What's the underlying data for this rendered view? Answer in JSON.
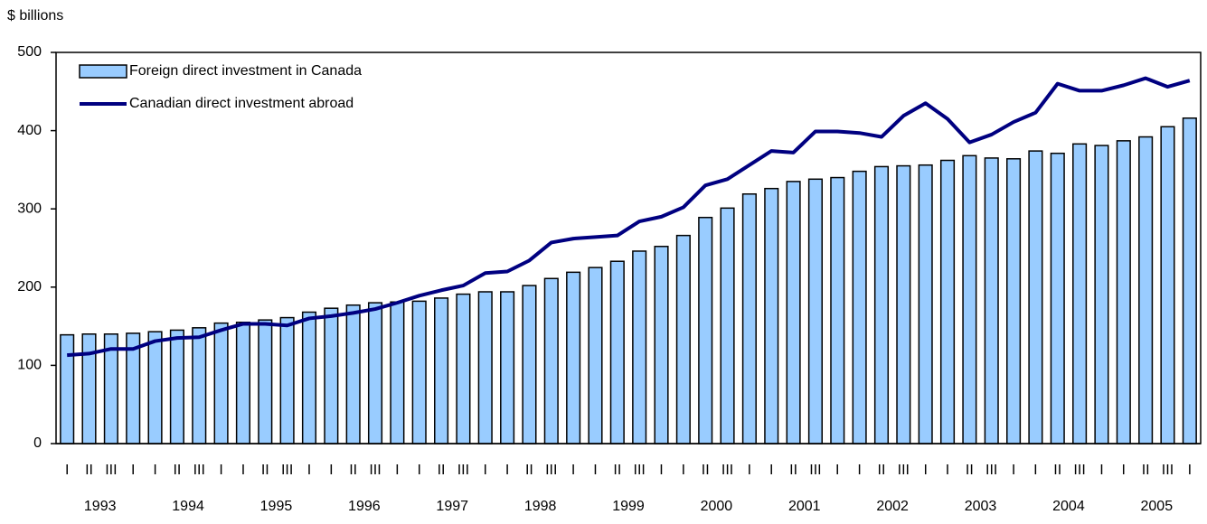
{
  "chart_data": {
    "type": "bar_line",
    "y_axis_label": "$ billions",
    "categories": [
      "I",
      "II",
      "III",
      "I",
      "I",
      "II",
      "III",
      "I",
      "I",
      "II",
      "III",
      "I",
      "I",
      "II",
      "III",
      "I",
      "I",
      "II",
      "III",
      "I",
      "I",
      "II",
      "III",
      "I",
      "I",
      "II",
      "III",
      "I",
      "I",
      "II",
      "III",
      "I",
      "I",
      "II",
      "III",
      "I",
      "I",
      "II",
      "III",
      "I",
      "I",
      "II",
      "III",
      "I",
      "I",
      "II",
      "III",
      "I",
      "I",
      "II",
      "III",
      "I"
    ],
    "years": [
      "1993",
      "1994",
      "1995",
      "1996",
      "1997",
      "1998",
      "1999",
      "2000",
      "2001",
      "2002",
      "2003",
      "2004",
      "2005"
    ],
    "series": [
      {
        "name": "Foreign direct investment in Canada",
        "color": "#99ccff",
        "kind": "bar",
        "values": [
          139,
          140,
          140,
          141,
          143,
          145,
          148,
          154,
          155,
          158,
          161,
          168,
          173,
          177,
          180,
          181,
          182,
          186,
          191,
          194,
          194,
          202,
          211,
          219,
          225,
          233,
          246,
          252,
          266,
          289,
          301,
          319,
          326,
          335,
          338,
          340,
          348,
          354,
          355,
          356,
          362,
          368,
          365,
          364,
          374,
          371,
          383,
          381,
          387,
          392,
          405,
          416
        ]
      },
      {
        "name": "Canadian direct investment abroad",
        "color": "#000080",
        "kind": "line",
        "values": [
          113,
          115,
          121,
          121,
          131,
          135,
          136,
          145,
          153,
          153,
          151,
          160,
          163,
          167,
          172,
          180,
          189,
          196,
          202,
          218,
          220,
          234,
          257,
          262,
          264,
          266,
          284,
          290,
          302,
          330,
          338,
          356,
          374,
          372,
          399,
          399,
          397,
          392,
          419,
          435,
          415,
          385,
          395,
          411,
          423,
          460,
          451,
          451,
          458,
          467,
          456,
          464
        ]
      }
    ],
    "ylim": [
      0,
      500
    ],
    "yticks": [
      0,
      100,
      200,
      300,
      400,
      500
    ],
    "legend": "top-left"
  }
}
